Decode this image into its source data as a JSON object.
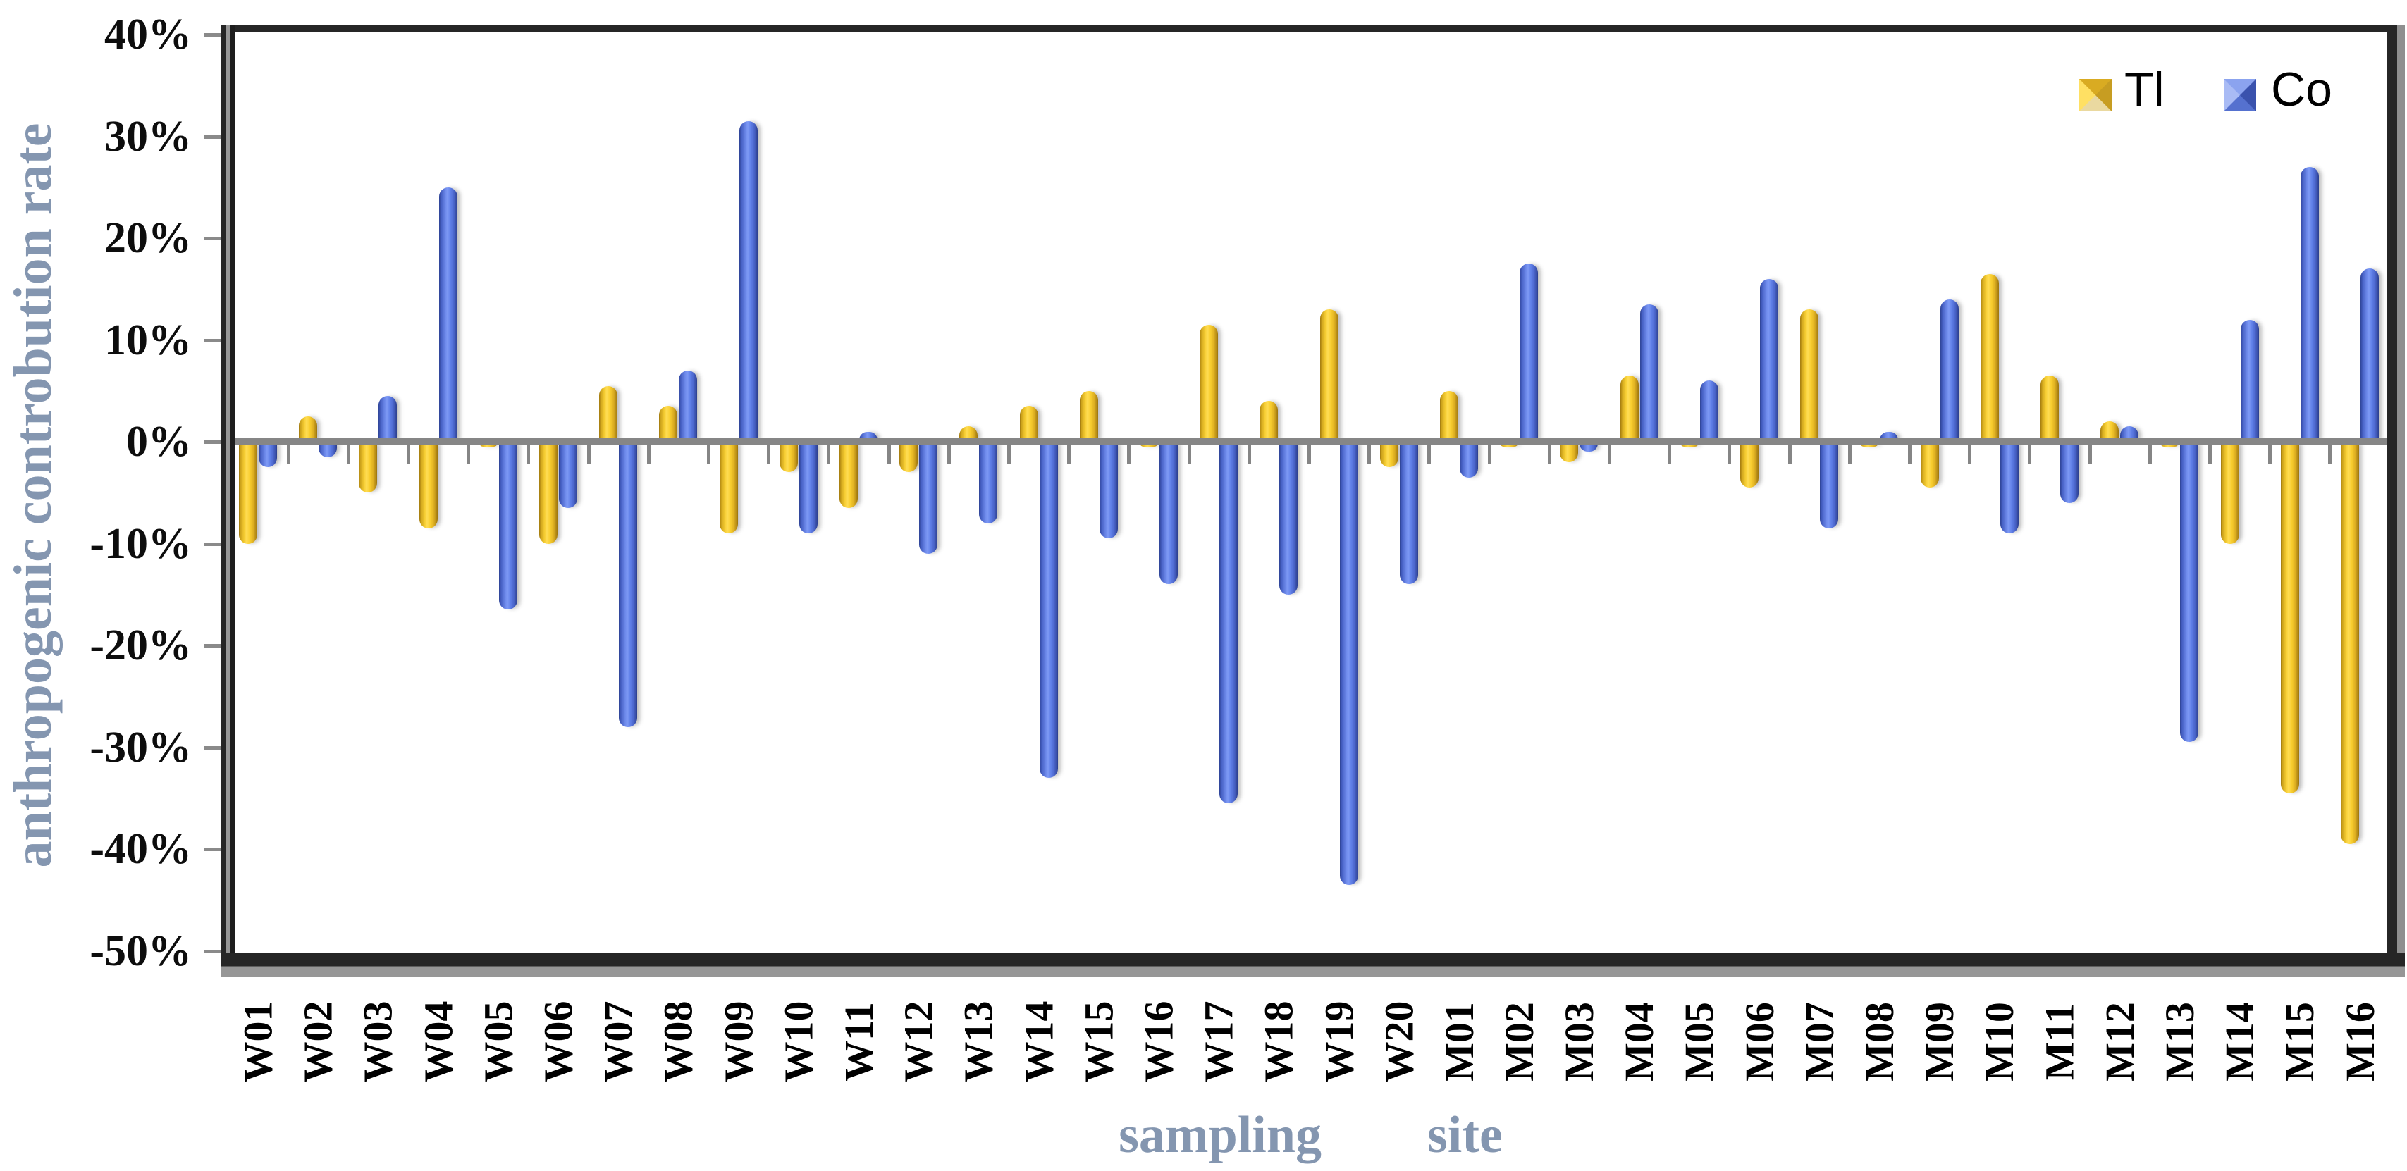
{
  "page": {
    "background": "#ffffff"
  },
  "y_axis": {
    "title": "anthropogenic controbution rate",
    "title_color": "#8496B0",
    "tick_labels": [
      "40%",
      "30%",
      "20%",
      "10%",
      "0%",
      "-10%",
      "-20%",
      "-30%",
      "-40%",
      "-50%"
    ],
    "tick_values": [
      40,
      30,
      20,
      10,
      0,
      -10,
      -20,
      -30,
      -40,
      -50
    ]
  },
  "x_axis": {
    "word1": "sampling",
    "word2": "site",
    "title_color": "#8496B0"
  },
  "legend": {
    "items": [
      {
        "label": "Tl",
        "color": "#F2C41F"
      },
      {
        "label": "Co",
        "color": "#5C7BE8"
      }
    ]
  },
  "chart_data": {
    "type": "bar",
    "title": "",
    "xlabel": "sampling site",
    "ylabel": "anthropogenic controbution rate",
    "categories": [
      "W01",
      "W02",
      "W03",
      "W04",
      "W05",
      "W06",
      "W07",
      "W08",
      "W09",
      "W10",
      "W11",
      "W12",
      "W13",
      "W14",
      "W15",
      "W16",
      "W17",
      "W18",
      "W19",
      "W20",
      "M01",
      "M02",
      "M03",
      "M04",
      "M05",
      "M06",
      "M07",
      "M08",
      "M09",
      "M10",
      "M11",
      "M12",
      "M13",
      "M14",
      "M15",
      "M16"
    ],
    "series": [
      {
        "name": "Tl",
        "color": "#F2C41F",
        "values": [
          -10,
          2.5,
          -5,
          -8.5,
          -0.5,
          -10,
          5.5,
          3.5,
          -9,
          -3,
          -6.5,
          -3,
          1.5,
          3.5,
          5,
          -0.5,
          11.5,
          4,
          13,
          -2.5,
          5,
          -0.5,
          -2,
          6.5,
          -0.5,
          -4.5,
          13,
          -0.5,
          -4.5,
          16.5,
          6.5,
          2,
          -0.5,
          -10,
          -34.5,
          -39.5
        ]
      },
      {
        "name": "Co",
        "color": "#5C7BE8",
        "values": [
          -2.5,
          -1.5,
          4.5,
          25,
          -16.5,
          -6.5,
          -28,
          7,
          31.5,
          -9,
          1,
          -11,
          -8,
          -33,
          -9.5,
          -14,
          -35.5,
          -15,
          -43.5,
          -14,
          -3.5,
          17.5,
          -1,
          13.5,
          6,
          16,
          -8.5,
          1,
          14,
          -9,
          -6,
          1.5,
          -29.5,
          12,
          27,
          17
        ]
      }
    ],
    "ylim": [
      -50,
      40
    ],
    "ytick_step": 10,
    "ytick_format": "percent",
    "grid": false,
    "legend_position": "top-right-inside",
    "bar_style": "3d-cylinder-rounded-cap",
    "axis_line_at_zero": true,
    "category_labels_rotated_90": true
  }
}
